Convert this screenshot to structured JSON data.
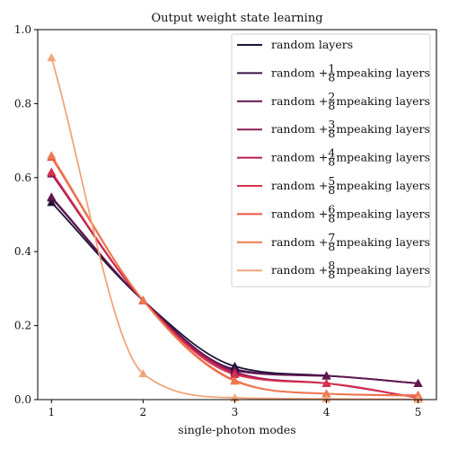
{
  "chart_data": {
    "type": "line",
    "title": "Output weight state learning",
    "xlabel": "single-photon modes",
    "ylabel": "",
    "x": [
      1,
      2,
      3,
      4,
      5
    ],
    "xlim": [
      0.85,
      5.2
    ],
    "ylim": [
      0.0,
      1.0
    ],
    "x_ticks": [
      "1",
      "2",
      "3",
      "4",
      "5"
    ],
    "y_ticks": [
      "0.0",
      "0.2",
      "0.4",
      "0.6",
      "0.8",
      "1.0"
    ],
    "grid": false,
    "legend_position": "top-right",
    "series": [
      {
        "name": "random layers",
        "numerator": null,
        "color": "#1f1137",
        "values": [
          0.533,
          0.268,
          0.09,
          0.065,
          0.044
        ]
      },
      {
        "name": "random + 1/8 m peaking layers",
        "numerator": "1",
        "color": "#3d1448",
        "values": [
          0.545,
          0.268,
          0.082,
          0.064,
          0.044
        ]
      },
      {
        "name": "random + 2/8 m peaking layers",
        "numerator": "2",
        "color": "#60164f",
        "values": [
          0.548,
          0.268,
          0.078,
          0.064,
          0.044
        ]
      },
      {
        "name": "random + 3/8 m peaking layers",
        "numerator": "3",
        "color": "#8c1b57",
        "values": [
          0.61,
          0.268,
          0.075,
          0.044,
          0.005
        ]
      },
      {
        "name": "random + 4/8 m peaking layers",
        "numerator": "4",
        "color": "#b41c56",
        "values": [
          0.615,
          0.268,
          0.072,
          0.044,
          0.005
        ]
      },
      {
        "name": "random + 5/8 m peaking layers",
        "numerator": "5",
        "color": "#d6314c",
        "values": [
          0.615,
          0.268,
          0.068,
          0.044,
          0.005
        ]
      },
      {
        "name": "random + 6/8 m peaking layers",
        "numerator": "6",
        "color": "#e85540",
        "values": [
          0.655,
          0.268,
          0.052,
          0.016,
          0.012
        ]
      },
      {
        "name": "random + 7/8 m peaking layers",
        "numerator": "7",
        "color": "#ee7a52",
        "values": [
          0.66,
          0.268,
          0.05,
          0.016,
          0.01
        ]
      },
      {
        "name": "random + 8/8 m peaking layers",
        "numerator": "8",
        "color": "#f2a47a",
        "values": [
          0.924,
          0.07,
          0.005,
          0.002,
          0.001
        ]
      }
    ],
    "legend_text": {
      "prefix": "random + ",
      "denominator": "8",
      "variable": "m",
      "suffix": " peaking layers"
    }
  }
}
